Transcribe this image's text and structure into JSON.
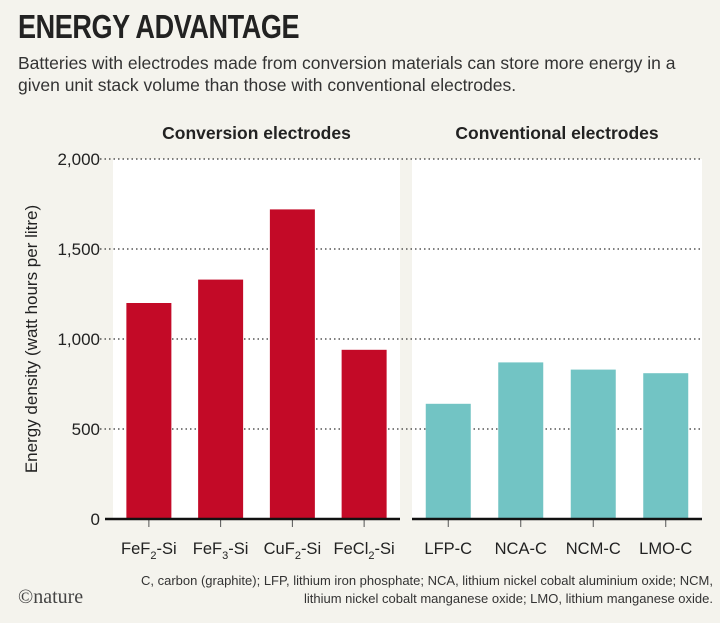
{
  "title": "ENERGY ADVANTAGE",
  "subtitle": "Batteries with electrodes made from conversion materials can store more energy in a given unit stack volume than those with conventional electrodes.",
  "footnote": "C, carbon (graphite); LFP, lithium iron phosphate; NCA, lithium nickel cobalt aluminium oxide; NCM, lithium nickel cobalt manganese oxide; LMO, lithium manganese oxide.",
  "logo": "©nature",
  "chart_data": {
    "type": "bar",
    "ylabel": "Energy density (watt hours per litre)",
    "ylim": [
      0,
      2000
    ],
    "yticks": [
      0,
      500,
      1000,
      1500,
      2000
    ],
    "ytick_labels": [
      "0",
      "500",
      "1,000",
      "1,500",
      "2,000"
    ],
    "grid": "dotted horizontal",
    "panels": [
      {
        "title": "Conversion electrodes",
        "color": "#c30a27",
        "categories": [
          [
            "FeF",
            "2",
            "-Si"
          ],
          [
            "FeF",
            "3",
            "-Si"
          ],
          [
            "CuF",
            "2",
            "-Si"
          ],
          [
            "FeCl",
            "2",
            "-Si"
          ]
        ],
        "values": [
          1200,
          1330,
          1720,
          940
        ]
      },
      {
        "title": "Conventional electrodes",
        "color": "#72c4c4",
        "categories": [
          [
            "LFP-C",
            "",
            ""
          ],
          [
            "NCA-C",
            "",
            ""
          ],
          [
            "NCM-C",
            "",
            ""
          ],
          [
            "LMO-C",
            "",
            ""
          ]
        ],
        "values": [
          640,
          870,
          830,
          810
        ]
      }
    ]
  }
}
